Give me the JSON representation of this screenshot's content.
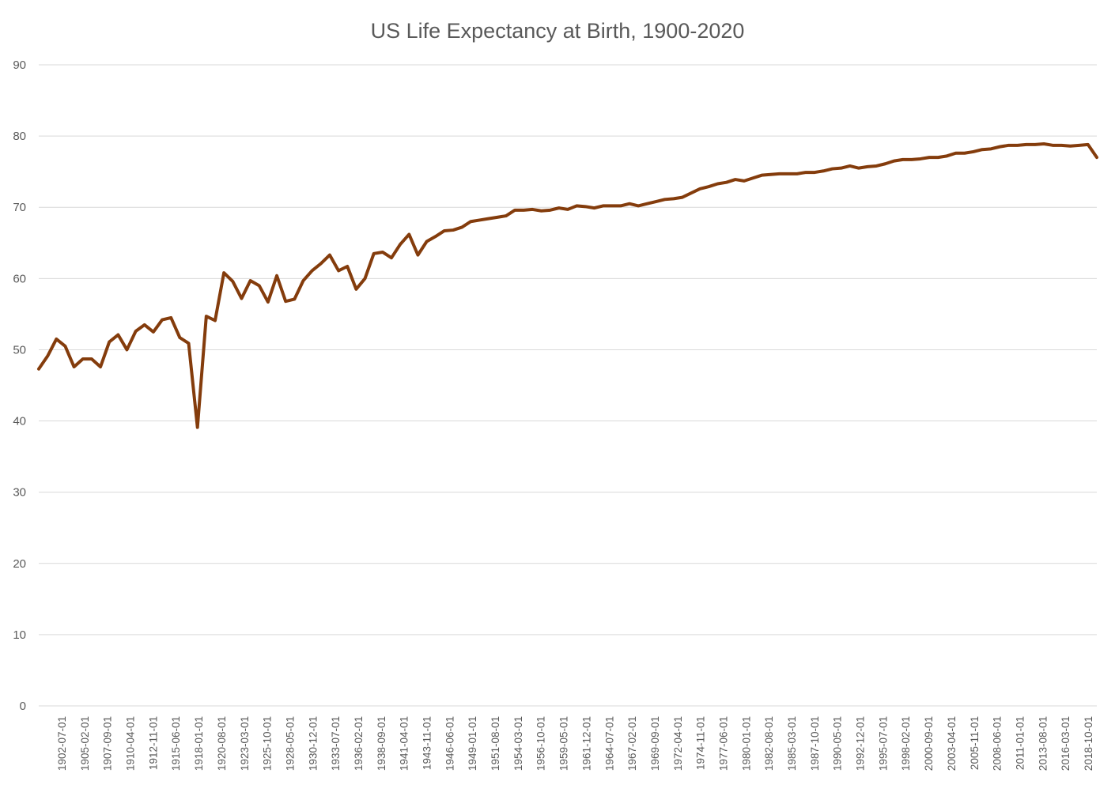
{
  "chart_data": {
    "type": "line",
    "title": "US Life Expectancy at Birth, 1900-2020",
    "xlabel": "",
    "ylabel": "",
    "ylim": [
      0,
      90
    ],
    "yticks": [
      0,
      10,
      20,
      30,
      40,
      50,
      60,
      70,
      80,
      90
    ],
    "grid": true,
    "legend": "none",
    "colors": {
      "line": "#843c0c",
      "grid": "#d9d9d9",
      "text": "#595959"
    },
    "x_tick_labels": [
      "1902-07-01",
      "1905-02-01",
      "1907-09-01",
      "1910-04-01",
      "1912-11-01",
      "1915-06-01",
      "1918-01-01",
      "1920-08-01",
      "1923-03-01",
      "1925-10-01",
      "1928-05-01",
      "1930-12-01",
      "1933-07-01",
      "1936-02-01",
      "1938-09-01",
      "1941-04-01",
      "1943-11-01",
      "1946-06-01",
      "1949-01-01",
      "1951-08-01",
      "1954-03-01",
      "1956-10-01",
      "1959-05-01",
      "1961-12-01",
      "1964-07-01",
      "1967-02-01",
      "1969-09-01",
      "1972-04-01",
      "1974-11-01",
      "1977-06-01",
      "1980-01-01",
      "1982-08-01",
      "1985-03-01",
      "1987-10-01",
      "1990-05-01",
      "1992-12-01",
      "1995-07-01",
      "1998-02-01",
      "2000-09-01",
      "2003-04-01",
      "2005-11-01",
      "2008-06-01",
      "2011-01-01",
      "2013-08-01",
      "2016-03-01",
      "2018-10-01"
    ],
    "x": [
      1900,
      1901,
      1902,
      1903,
      1904,
      1905,
      1906,
      1907,
      1908,
      1909,
      1910,
      1911,
      1912,
      1913,
      1914,
      1915,
      1916,
      1917,
      1918,
      1919,
      1920,
      1921,
      1922,
      1923,
      1924,
      1925,
      1926,
      1927,
      1928,
      1929,
      1930,
      1931,
      1932,
      1933,
      1934,
      1935,
      1936,
      1937,
      1938,
      1939,
      1940,
      1941,
      1942,
      1943,
      1944,
      1945,
      1946,
      1947,
      1948,
      1949,
      1950,
      1951,
      1952,
      1953,
      1954,
      1955,
      1956,
      1957,
      1958,
      1959,
      1960,
      1961,
      1962,
      1963,
      1964,
      1965,
      1966,
      1967,
      1968,
      1969,
      1970,
      1971,
      1972,
      1973,
      1974,
      1975,
      1976,
      1977,
      1978,
      1979,
      1980,
      1981,
      1982,
      1983,
      1984,
      1985,
      1986,
      1987,
      1988,
      1989,
      1990,
      1991,
      1992,
      1993,
      1994,
      1995,
      1996,
      1997,
      1998,
      1999,
      2000,
      2001,
      2002,
      2003,
      2004,
      2005,
      2006,
      2007,
      2008,
      2009,
      2010,
      2011,
      2012,
      2013,
      2014,
      2015,
      2016,
      2017,
      2018,
      2019,
      2020
    ],
    "series": [
      {
        "values": [
          47.3,
          49.1,
          51.5,
          50.5,
          47.6,
          48.7,
          48.7,
          47.6,
          51.1,
          52.1,
          50.0,
          52.6,
          53.5,
          52.5,
          54.2,
          54.5,
          51.7,
          50.9,
          39.1,
          54.7,
          54.1,
          60.8,
          59.6,
          57.2,
          59.7,
          59.0,
          56.7,
          60.4,
          56.8,
          57.1,
          59.7,
          61.1,
          62.1,
          63.3,
          61.1,
          61.7,
          58.5,
          60.0,
          63.5,
          63.7,
          62.9,
          64.8,
          66.2,
          63.3,
          65.2,
          65.9,
          66.7,
          66.8,
          67.2,
          68.0,
          68.2,
          68.4,
          68.6,
          68.8,
          69.6,
          69.6,
          69.7,
          69.5,
          69.6,
          69.9,
          69.7,
          70.2,
          70.1,
          69.9,
          70.2,
          70.2,
          70.2,
          70.5,
          70.2,
          70.5,
          70.8,
          71.1,
          71.2,
          71.4,
          72.0,
          72.6,
          72.9,
          73.3,
          73.5,
          73.9,
          73.7,
          74.1,
          74.5,
          74.6,
          74.7,
          74.7,
          74.7,
          74.9,
          74.9,
          75.1,
          75.4,
          75.5,
          75.8,
          75.5,
          75.7,
          75.8,
          76.1,
          76.5,
          76.7,
          76.7,
          76.8,
          77.0,
          77.0,
          77.2,
          77.6,
          77.6,
          77.8,
          78.1,
          78.2,
          78.5,
          78.7,
          78.7,
          78.8,
          78.8,
          78.9,
          78.7,
          78.7,
          78.6,
          78.7,
          78.8,
          77.0
        ]
      }
    ]
  }
}
